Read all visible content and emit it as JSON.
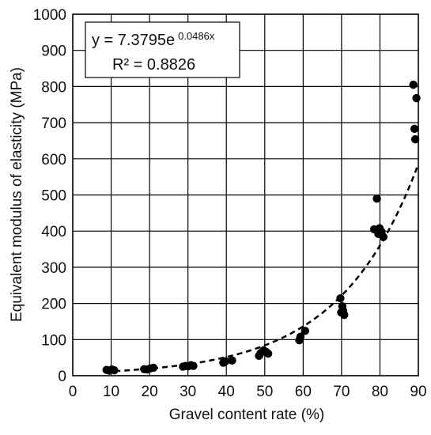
{
  "chart_data": {
    "type": "scatter",
    "title": "",
    "xlabel": "Gravel content rate (%)",
    "ylabel": "Equivalent modulus of elasticity (MPa)",
    "xlim": [
      0,
      90
    ],
    "ylim": [
      0,
      1000
    ],
    "x_ticks": [
      "0",
      "10",
      "20",
      "30",
      "40",
      "50",
      "60",
      "70",
      "80",
      "90"
    ],
    "y_ticks": [
      "0",
      "100",
      "200",
      "300",
      "400",
      "500",
      "600",
      "700",
      "800",
      "900",
      "1000"
    ],
    "grid": true,
    "points": [
      {
        "x": 8.8,
        "y": 16
      },
      {
        "x": 9.5,
        "y": 14
      },
      {
        "x": 10.2,
        "y": 17
      },
      {
        "x": 10.8,
        "y": 15
      },
      {
        "x": 18.6,
        "y": 18
      },
      {
        "x": 19.4,
        "y": 17
      },
      {
        "x": 20.2,
        "y": 20
      },
      {
        "x": 21.0,
        "y": 22
      },
      {
        "x": 28.7,
        "y": 25
      },
      {
        "x": 29.4,
        "y": 27
      },
      {
        "x": 30.1,
        "y": 26
      },
      {
        "x": 30.8,
        "y": 29
      },
      {
        "x": 31.4,
        "y": 27
      },
      {
        "x": 39.2,
        "y": 36
      },
      {
        "x": 39.8,
        "y": 40
      },
      {
        "x": 41.5,
        "y": 42
      },
      {
        "x": 48.5,
        "y": 55
      },
      {
        "x": 48.9,
        "y": 62
      },
      {
        "x": 49.7,
        "y": 70
      },
      {
        "x": 50.3,
        "y": 66
      },
      {
        "x": 50.9,
        "y": 61
      },
      {
        "x": 59.0,
        "y": 98
      },
      {
        "x": 59.3,
        "y": 108
      },
      {
        "x": 60.5,
        "y": 124
      },
      {
        "x": 69.7,
        "y": 214
      },
      {
        "x": 69.9,
        "y": 175
      },
      {
        "x": 70.2,
        "y": 192
      },
      {
        "x": 70.4,
        "y": 180
      },
      {
        "x": 70.7,
        "y": 168
      },
      {
        "x": 78.5,
        "y": 405
      },
      {
        "x": 79.2,
        "y": 490
      },
      {
        "x": 79.6,
        "y": 392
      },
      {
        "x": 79.9,
        "y": 408
      },
      {
        "x": 80.4,
        "y": 398
      },
      {
        "x": 80.9,
        "y": 384
      },
      {
        "x": 88.7,
        "y": 805
      },
      {
        "x": 89.0,
        "y": 683
      },
      {
        "x": 89.2,
        "y": 654
      },
      {
        "x": 89.5,
        "y": 768
      }
    ],
    "trendline": {
      "type": "exponential",
      "a": 7.3795,
      "b": 0.0486,
      "x_start": 8.5,
      "x_end": 90,
      "style": "dashed"
    },
    "equation": {
      "prefix": "y = 7.3795e",
      "exponent": "0.0486x",
      "r_squared": "R² = 0.8826"
    }
  }
}
